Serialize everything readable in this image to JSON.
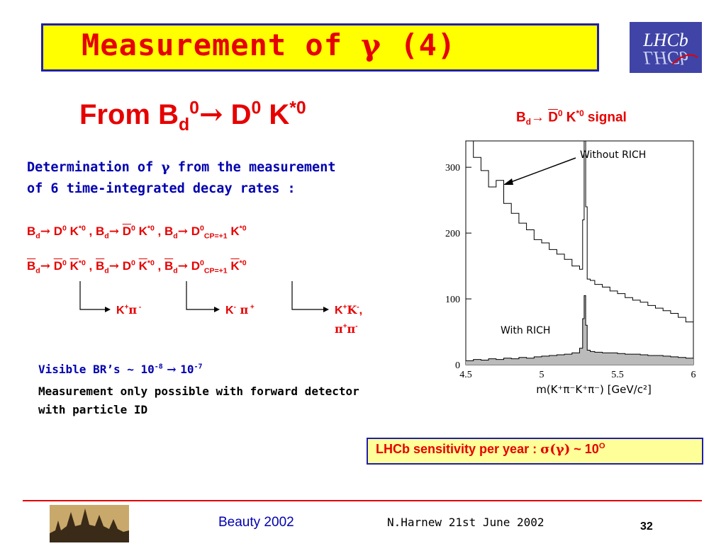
{
  "title": {
    "prefix": "Measurement of ",
    "symbol": "γ",
    "suffix": " (4)"
  },
  "subtitle": {
    "from": "From B",
    "sub_d": "d",
    "sup_0a": "0",
    "arrow": "→",
    "d": " D",
    "sup_0b": "0",
    "k": " K",
    "sup_star0": "*0"
  },
  "figure_caption": {
    "b": "B",
    "sub": "d",
    "arrow": "→ ",
    "dbar": "D",
    "sup0": "0",
    "k": " K",
    "sup": "*0",
    "signal": " signal"
  },
  "intro": {
    "line1_a": "Determination of ",
    "gamma": "γ",
    "line1_b": "  from the measurement",
    "line2": "of 6 time-integrated decay rates :"
  },
  "decays": {
    "row1": [
      {
        "b": "B",
        "bbar": false,
        "sub": "d",
        "d": "D",
        "dbar": false,
        "dsup": "0",
        "k": "K",
        "kbar": false,
        "ksup": "*0",
        "dsub": "",
        "sep": " ,  "
      },
      {
        "b": "B",
        "bbar": false,
        "sub": "d",
        "d": "D",
        "dbar": true,
        "dsup": "0",
        "k": "K",
        "kbar": false,
        "ksup": "*0",
        "dsub": "",
        "sep": " , "
      },
      {
        "b": "B",
        "bbar": false,
        "sub": "d",
        "d": "D",
        "dbar": false,
        "dsup": "0",
        "k": "K",
        "kbar": false,
        "ksup": "*0",
        "dsub": "CP=+1",
        "sep": ""
      }
    ],
    "row2": [
      {
        "b": "B",
        "bbar": true,
        "sub": "d",
        "d": "D",
        "dbar": true,
        "dsup": "0",
        "k": "K",
        "kbar": true,
        "ksup": "*0",
        "dsub": "",
        "sep": " ,  "
      },
      {
        "b": "B",
        "bbar": true,
        "sub": "d",
        "d": "D",
        "dbar": false,
        "dsup": "0",
        "k": "K",
        "kbar": true,
        "ksup": "*0",
        "dsub": "",
        "sep": " , "
      },
      {
        "b": "B",
        "bbar": true,
        "sub": "d",
        "d": "D",
        "dbar": false,
        "dsup": "0",
        "k": "K",
        "kbar": true,
        "ksup": "*0",
        "dsub": "CP=+1",
        "sep": ""
      }
    ],
    "arrow": "→"
  },
  "final_states": {
    "fs1": {
      "k": "K",
      "ksup": "+",
      "pi": "π",
      "pisup": " -"
    },
    "fs2": {
      "k": "K",
      "ksup": "-",
      "pi": " π",
      "pisup": " +"
    },
    "fs3_line1": {
      "k": "K",
      "ksup": "+",
      "k2": "K",
      "k2sup": "-",
      "comma": ","
    },
    "fs3_line2": {
      "pi": "π",
      "pisup": "+",
      "pi2": "π",
      "pi2sup": "-"
    }
  },
  "visible_br": {
    "label": "Visible BR’s ~ 10",
    "exp1": "-8",
    "arrow": " → ",
    "base2": "10",
    "exp2": "-7"
  },
  "measurement_note": "Measurement only possible with forward detector with particle ID",
  "sensitivity": {
    "label": "LHCb sensitivity per year :  ",
    "sigma": "σ(γ)",
    "approx": " ~ 10",
    "sup": "O"
  },
  "footer": {
    "conference": "Beauty 2002",
    "author": "N.Harnew  21st June 2002",
    "page": "32"
  },
  "logo_text": "LHCb",
  "chart_data": {
    "type": "line",
    "title": "",
    "xlabel": "m(K⁺π⁻K⁺π⁻)  [GeV/c²]",
    "ylabel": "",
    "xlim": [
      4.5,
      6
    ],
    "ylim": [
      0,
      340
    ],
    "xticks": [
      4.5,
      5,
      5.5,
      6
    ],
    "xtick_labels": [
      "4.5",
      "5",
      "5.5",
      "6"
    ],
    "yticks": [
      0,
      100,
      200,
      300
    ],
    "ytick_labels": [
      "0",
      "100",
      "200",
      "300"
    ],
    "annotations": [
      "Without RICH",
      "With RICH"
    ],
    "series": [
      {
        "x": [
          4.5,
          4.55,
          4.6,
          4.65,
          4.7,
          4.75,
          4.8,
          4.85,
          4.9,
          4.95,
          5.0,
          5.05,
          5.1,
          5.15,
          5.2,
          5.25,
          5.27,
          5.28,
          5.29,
          5.3,
          5.32,
          5.35,
          5.4,
          5.45,
          5.5,
          5.55,
          5.6,
          5.65,
          5.7,
          5.75,
          5.8,
          5.85,
          5.9,
          5.95,
          6.0
        ],
        "values": [
          340,
          315,
          295,
          270,
          280,
          245,
          230,
          215,
          205,
          190,
          185,
          175,
          168,
          160,
          150,
          145,
          220,
          360,
          240,
          130,
          128,
          122,
          118,
          112,
          108,
          102,
          98,
          95,
          90,
          86,
          82,
          78,
          72,
          65,
          58
        ]
      },
      {
        "x": [
          4.5,
          4.55,
          4.6,
          4.65,
          4.7,
          4.75,
          4.8,
          4.85,
          4.9,
          4.95,
          5.0,
          5.05,
          5.1,
          5.15,
          5.2,
          5.25,
          5.27,
          5.28,
          5.29,
          5.3,
          5.32,
          5.35,
          5.4,
          5.45,
          5.5,
          5.55,
          5.6,
          5.65,
          5.7,
          5.75,
          5.8,
          5.85,
          5.9,
          5.95,
          6.0
        ],
        "values": [
          6,
          8,
          7,
          9,
          8,
          10,
          9,
          11,
          10,
          12,
          13,
          14,
          15,
          16,
          18,
          25,
          70,
          105,
          60,
          22,
          20,
          19,
          18,
          18,
          17,
          16,
          16,
          15,
          14,
          14,
          13,
          12,
          11,
          10,
          9
        ]
      }
    ]
  }
}
